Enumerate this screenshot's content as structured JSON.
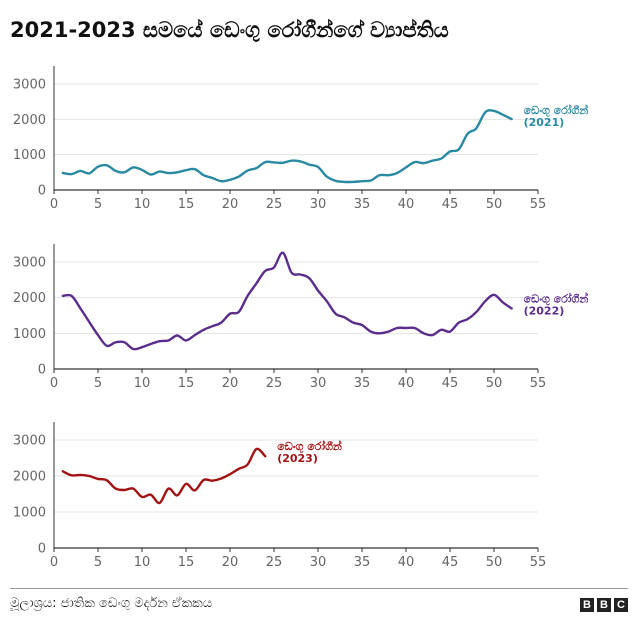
{
  "title": "2021-2023 සමයේ ඩෙංගු රෝගීන්ගේ ව්‍යාප්තිය",
  "source": "මූලාශ්‍රය: ජාතික ඩෙංගු මර්දන ඒකකය",
  "logo": [
    "B",
    "B",
    "C"
  ],
  "colors": {
    "s2021": "#2a8aa3",
    "s2022": "#5b2d8c",
    "s2023": "#a31212",
    "grid": "#e3e3e3",
    "axis": "#333333",
    "tick": "#666666"
  },
  "chart_data": [
    {
      "type": "line",
      "xlim": [
        0,
        55
      ],
      "ylim": [
        0,
        3000
      ],
      "xticks": [
        0,
        5,
        10,
        15,
        20,
        25,
        30,
        35,
        40,
        45,
        50,
        55
      ],
      "yticks": [
        0,
        1000,
        2000,
        3000
      ],
      "grid": true,
      "series": [
        {
          "name": "ඩෙංගු රෝගීන් (2021)",
          "label_line1": "ඩෙංගු රෝගීන්",
          "label_line2": "(2021)",
          "color": "#2a8aa3",
          "x": [
            1,
            2,
            3,
            4,
            5,
            6,
            7,
            8,
            9,
            10,
            11,
            12,
            13,
            14,
            15,
            16,
            17,
            18,
            19,
            20,
            21,
            22,
            23,
            24,
            25,
            26,
            27,
            28,
            29,
            30,
            31,
            32,
            33,
            34,
            35,
            36,
            37,
            38,
            39,
            40,
            41,
            42,
            43,
            44,
            45,
            46,
            47,
            48,
            49,
            50,
            51,
            52
          ],
          "y": [
            480,
            450,
            540,
            470,
            660,
            700,
            540,
            500,
            640,
            570,
            440,
            520,
            480,
            500,
            560,
            590,
            420,
            340,
            250,
            290,
            380,
            550,
            620,
            790,
            780,
            770,
            830,
            810,
            720,
            650,
            380,
            260,
            230,
            230,
            250,
            270,
            420,
            420,
            480,
            640,
            790,
            760,
            830,
            890,
            1090,
            1150,
            1590,
            1750,
            2200,
            2240,
            2130,
            2010
          ]
        }
      ]
    },
    {
      "type": "line",
      "xlim": [
        0,
        55
      ],
      "ylim": [
        0,
        3000
      ],
      "xticks": [
        0,
        5,
        10,
        15,
        20,
        25,
        30,
        35,
        40,
        45,
        50,
        55
      ],
      "yticks": [
        0,
        1000,
        2000,
        3000
      ],
      "grid": true,
      "series": [
        {
          "name": "ඩෙංගු රෝගීන් (2022)",
          "label_line1": "ඩෙංගු රෝගීන්",
          "label_line2": "(2022)",
          "color": "#5b2d8c",
          "x": [
            1,
            2,
            3,
            4,
            5,
            6,
            7,
            8,
            9,
            10,
            11,
            12,
            13,
            14,
            15,
            16,
            17,
            18,
            19,
            20,
            21,
            22,
            23,
            24,
            25,
            26,
            27,
            28,
            29,
            30,
            31,
            32,
            33,
            34,
            35,
            36,
            37,
            38,
            39,
            40,
            41,
            42,
            43,
            44,
            45,
            46,
            47,
            48,
            49,
            50,
            51,
            52
          ],
          "y": [
            2050,
            2050,
            1700,
            1320,
            950,
            650,
            750,
            750,
            560,
            610,
            700,
            780,
            800,
            940,
            800,
            950,
            1100,
            1200,
            1300,
            1550,
            1600,
            2050,
            2400,
            2750,
            2850,
            3260,
            2700,
            2650,
            2550,
            2200,
            1900,
            1550,
            1450,
            1300,
            1230,
            1050,
            1000,
            1050,
            1150,
            1150,
            1150,
            1000,
            950,
            1100,
            1050,
            1300,
            1400,
            1600,
            1900,
            2080,
            1870,
            1700
          ]
        }
      ]
    },
    {
      "type": "line",
      "xlim": [
        0,
        55
      ],
      "ylim": [
        0,
        3000
      ],
      "xticks": [
        0,
        5,
        10,
        15,
        20,
        25,
        30,
        35,
        40,
        45,
        50,
        55
      ],
      "yticks": [
        0,
        1000,
        2000,
        3000
      ],
      "grid": true,
      "series": [
        {
          "name": "ඩෙංගු රෝගීන් (2023)",
          "label_line1": "ඩෙංගු රෝගීන්",
          "label_line2": "(2023)",
          "color": "#a31212",
          "x": [
            1,
            2,
            3,
            4,
            5,
            6,
            7,
            8,
            9,
            10,
            11,
            12,
            13,
            14,
            15,
            16,
            17,
            18,
            19,
            20,
            21,
            22,
            23,
            24
          ],
          "y": [
            2130,
            2020,
            2030,
            2000,
            1920,
            1880,
            1650,
            1610,
            1650,
            1420,
            1480,
            1250,
            1650,
            1460,
            1780,
            1600,
            1890,
            1870,
            1930,
            2050,
            2200,
            2320,
            2750,
            2550
          ]
        }
      ]
    }
  ]
}
